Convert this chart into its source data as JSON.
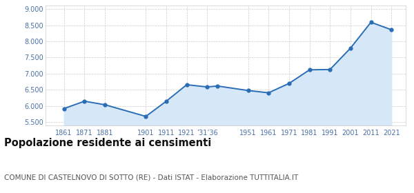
{
  "years": [
    1861,
    1871,
    1881,
    1901,
    1911,
    1921,
    1931,
    1936,
    1951,
    1961,
    1971,
    1981,
    1991,
    2001,
    2011,
    2021
  ],
  "population": [
    5920,
    6150,
    6040,
    5680,
    6150,
    6660,
    6590,
    6620,
    6480,
    6410,
    6700,
    7120,
    7130,
    7790,
    8590,
    8360
  ],
  "line_color": "#2a6db5",
  "fill_color": "#d6e8f7",
  "marker_size": 3.5,
  "ylim": [
    5400,
    9100
  ],
  "yticks": [
    5500,
    6000,
    6500,
    7000,
    7500,
    8000,
    8500,
    9000
  ],
  "x_tick_positions": [
    1861,
    1871,
    1881,
    1901,
    1911,
    1921,
    1931,
    1951,
    1961,
    1971,
    1981,
    1991,
    2001,
    2011,
    2021
  ],
  "x_tick_labels": [
    "1861",
    "1871",
    "1881",
    "1901",
    "1911",
    "1921",
    "’31’36",
    "1951",
    "1961",
    "1971",
    "1981",
    "1991",
    "2001",
    "2011",
    "2021"
  ],
  "xlim_left": 1852,
  "xlim_right": 2028,
  "title": "Popolazione residente ai censimenti",
  "title_fontsize": 10.5,
  "subtitle": "COMUNE DI CASTELNOVO DI SOTTO (RE) - Dati ISTAT - Elaborazione TUTTITALIA.IT",
  "subtitle_fontsize": 7.5,
  "bg_color": "#ffffff",
  "grid_color": "#cccccc",
  "axis_label_color": "#4a6fa5",
  "tick_fontsize": 7,
  "fill_bottom": 5400
}
